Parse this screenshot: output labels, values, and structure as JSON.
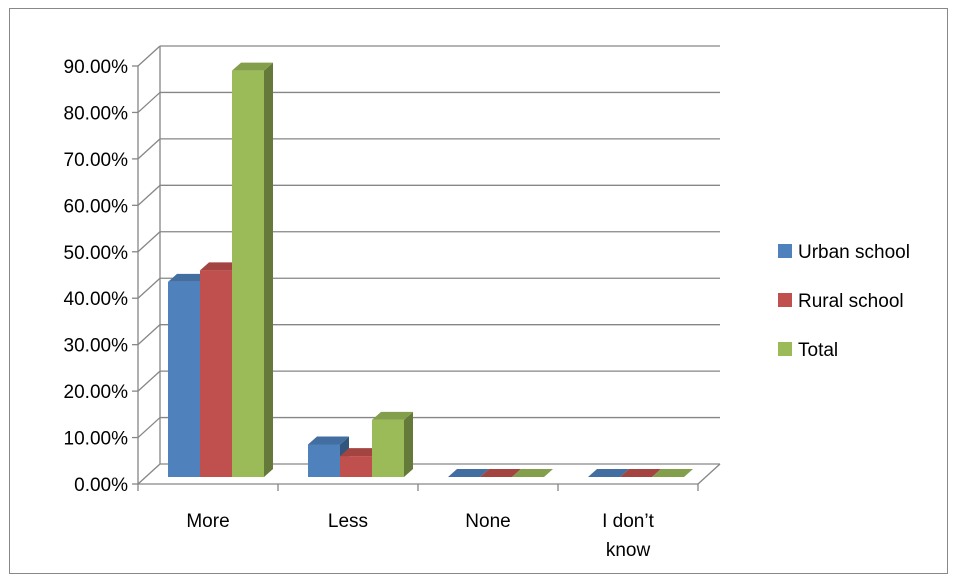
{
  "chart_data": {
    "type": "bar",
    "style": "3d-clustered-column",
    "categories": [
      "More",
      "Less",
      "None",
      "I don’t know"
    ],
    "series": [
      {
        "name": "Urban school",
        "values": [
          42.0,
          7.0,
          0.0,
          0.0
        ],
        "color": "#4f81bd"
      },
      {
        "name": "Rural school",
        "values": [
          44.5,
          4.5,
          0.0,
          0.0
        ],
        "color": "#c0504d"
      },
      {
        "name": "Total",
        "values": [
          87.5,
          12.3,
          0.0,
          0.0
        ],
        "color": "#9bbb59"
      }
    ],
    "y_ticks": [
      "0.00%",
      "10.00%",
      "20.00%",
      "30.00%",
      "40.00%",
      "50.00%",
      "60.00%",
      "70.00%",
      "80.00%",
      "90.00%"
    ],
    "ylim": [
      0,
      90
    ],
    "grid": true,
    "legend_position": "right",
    "title": "",
    "xlabel": "",
    "ylabel": ""
  }
}
